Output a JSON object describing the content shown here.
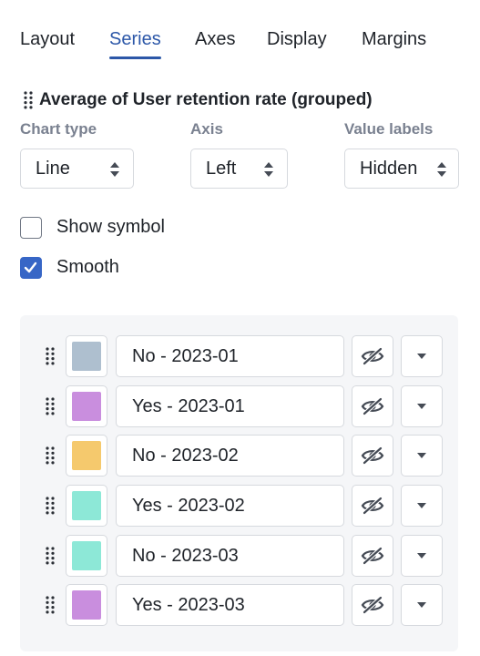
{
  "tabs": [
    {
      "label": "Layout",
      "active": false
    },
    {
      "label": "Series",
      "active": true
    },
    {
      "label": "Axes",
      "active": false
    },
    {
      "label": "Display",
      "active": false
    },
    {
      "label": "Margins",
      "active": false
    }
  ],
  "section": {
    "title": "Average of User retention rate (grouped)",
    "icon": "drag-handle-icon"
  },
  "fields": {
    "chart_type": {
      "label": "Chart type",
      "value": "Line"
    },
    "axis": {
      "label": "Axis",
      "value": "Left"
    },
    "value_labels": {
      "label": "Value labels",
      "value": "Hidden"
    }
  },
  "options": {
    "show_symbol": {
      "label": "Show symbol",
      "checked": false
    },
    "smooth": {
      "label": "Smooth",
      "checked": true
    }
  },
  "series": [
    {
      "name": "No - 2023-01",
      "color": "#aebfcf",
      "visibility_icon": "eye-slash-icon",
      "menu_icon": "caret-down-icon"
    },
    {
      "name": "Yes - 2023-01",
      "color": "#c98ede",
      "visibility_icon": "eye-slash-icon",
      "menu_icon": "caret-down-icon"
    },
    {
      "name": "No - 2023-02",
      "color": "#f5c96d",
      "visibility_icon": "eye-slash-icon",
      "menu_icon": "caret-down-icon"
    },
    {
      "name": "Yes - 2023-02",
      "color": "#8de8d7",
      "visibility_icon": "eye-slash-icon",
      "menu_icon": "caret-down-icon"
    },
    {
      "name": "No - 2023-03",
      "color": "#8de8d7",
      "visibility_icon": "eye-slash-icon",
      "menu_icon": "caret-down-icon"
    },
    {
      "name": "Yes - 2023-03",
      "color": "#c98ede",
      "visibility_icon": "eye-slash-icon",
      "menu_icon": "caret-down-icon"
    }
  ],
  "colors": {
    "accent": "#2c57a8",
    "checkbox_checked": "#3766c6",
    "label_muted": "#7a8190",
    "panel_bg": "#f5f6f8",
    "border": "#d6d9de"
  }
}
